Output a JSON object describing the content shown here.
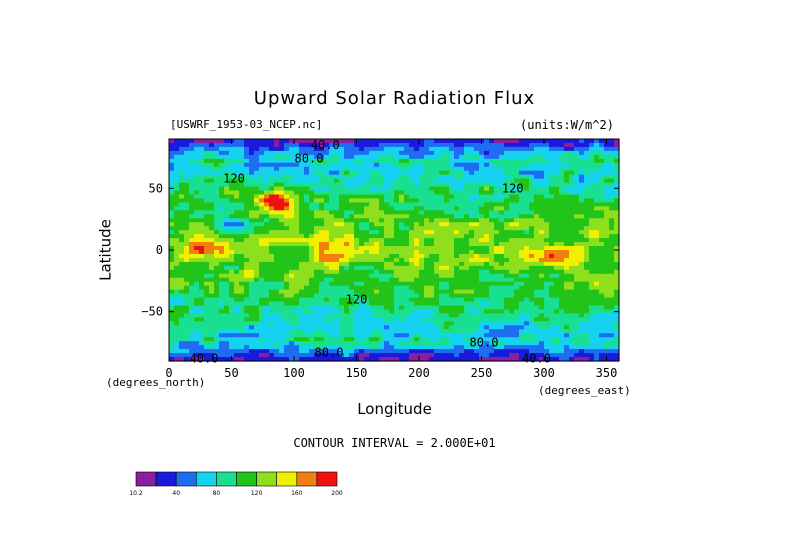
{
  "chart_data": {
    "type": "heatmap",
    "title": "Upward Solar Radiation Flux",
    "source_label": "[USWRF_1953-03_NCEP.nc]",
    "units_label": "(units:W/m^2)",
    "xlabel": "Longitude",
    "ylabel": "Latitude",
    "x_unit_note": "(degrees_east)",
    "y_unit_note": "(degrees_north)",
    "xlim": [
      0,
      360
    ],
    "ylim": [
      -90,
      90
    ],
    "x_ticks": [
      "0",
      "50",
      "100",
      "150",
      "200",
      "250",
      "300",
      "350"
    ],
    "y_ticks": [
      "50",
      "0",
      "−50"
    ],
    "contour_interval_text": "CONTOUR INTERVAL = 2.000E+01",
    "colorbar": {
      "tick_labels": [
        "10.2",
        "40",
        "80",
        "120",
        "160",
        "200"
      ],
      "levels": [
        10.2,
        20,
        40,
        60,
        80,
        100,
        120,
        140,
        160,
        180,
        200
      ],
      "colors": [
        "#8a1fa0",
        "#1a1adc",
        "#1e6cf0",
        "#14d2f0",
        "#18e090",
        "#22c41a",
        "#8ee01c",
        "#f0f000",
        "#f07e10",
        "#f01010"
      ]
    },
    "contour_labels": [
      {
        "text": "40.0",
        "lon": 125,
        "lat": 85
      },
      {
        "text": "80.0",
        "lon": 112,
        "lat": 74
      },
      {
        "text": "120",
        "lon": 52,
        "lat": 58
      },
      {
        "text": "120",
        "lon": 275,
        "lat": 50
      },
      {
        "text": "120",
        "lon": 150,
        "lat": -40
      },
      {
        "text": "80.0",
        "lon": 252,
        "lat": -75
      },
      {
        "text": "80.0",
        "lon": 128,
        "lat": -83
      },
      {
        "text": "40.0",
        "lon": 28,
        "lat": -88
      },
      {
        "text": "40.0",
        "lon": 294,
        "lat": -88
      }
    ],
    "features": [
      {
        "lon": 25,
        "lat": 0,
        "value": 170
      },
      {
        "lon": 305,
        "lat": -5,
        "value": 185
      },
      {
        "lon": 85,
        "lat": 38,
        "value": 195
      },
      {
        "lon": 130,
        "lat": 2,
        "value": 165
      },
      {
        "lon": 55,
        "lat": 18,
        "value": 70
      },
      {
        "lon": 245,
        "lat": 40,
        "value": 100
      }
    ]
  }
}
